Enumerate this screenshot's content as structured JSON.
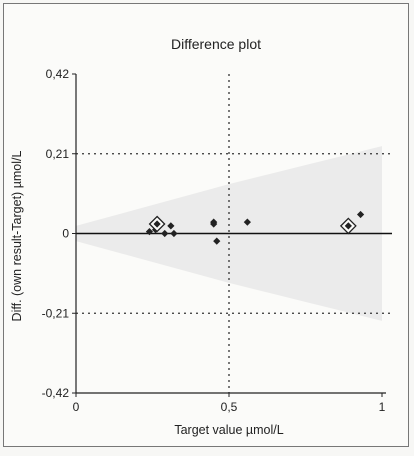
{
  "chart_data": {
    "type": "scatter",
    "title": "Difference plot",
    "xlabel": "Target value µmol/L",
    "ylabel": "Diff. (own result-Target) µmol/L",
    "xlim": [
      0,
      1
    ],
    "ylim": [
      -0.42,
      0.42
    ],
    "x_ticks": [
      0,
      0.5,
      1
    ],
    "x_tick_labels": [
      "0",
      "0,5",
      "1"
    ],
    "y_ticks": [
      0.42,
      0.21,
      0,
      -0.21,
      -0.42
    ],
    "y_tick_labels": [
      "0,42",
      "0,21",
      "0",
      "-0,21",
      "-0,42"
    ],
    "reference_lines": {
      "horizontal_solid": 0,
      "horizontal_dotted": [
        0.21,
        -0.21
      ],
      "vertical_dotted": 0.5
    },
    "shaded_band": "light grey funnel widening with target value",
    "points": [
      {
        "x": 0.24,
        "y": 0.005
      },
      {
        "x": 0.26,
        "y": 0.01
      },
      {
        "x": 0.29,
        "y": 0.0
      },
      {
        "x": 0.31,
        "y": 0.02
      },
      {
        "x": 0.32,
        "y": 0.0
      },
      {
        "x": 0.45,
        "y": 0.03
      },
      {
        "x": 0.45,
        "y": 0.025
      },
      {
        "x": 0.46,
        "y": -0.02
      },
      {
        "x": 0.56,
        "y": 0.03
      },
      {
        "x": 0.93,
        "y": 0.05
      }
    ],
    "highlighted_points": [
      {
        "x": 0.265,
        "y": 0.025
      },
      {
        "x": 0.89,
        "y": 0.02
      }
    ],
    "colors": {
      "marker": "#222222",
      "band": "#e6e6e6",
      "zero_line": "#111111",
      "dotted_line": "#333333"
    }
  }
}
